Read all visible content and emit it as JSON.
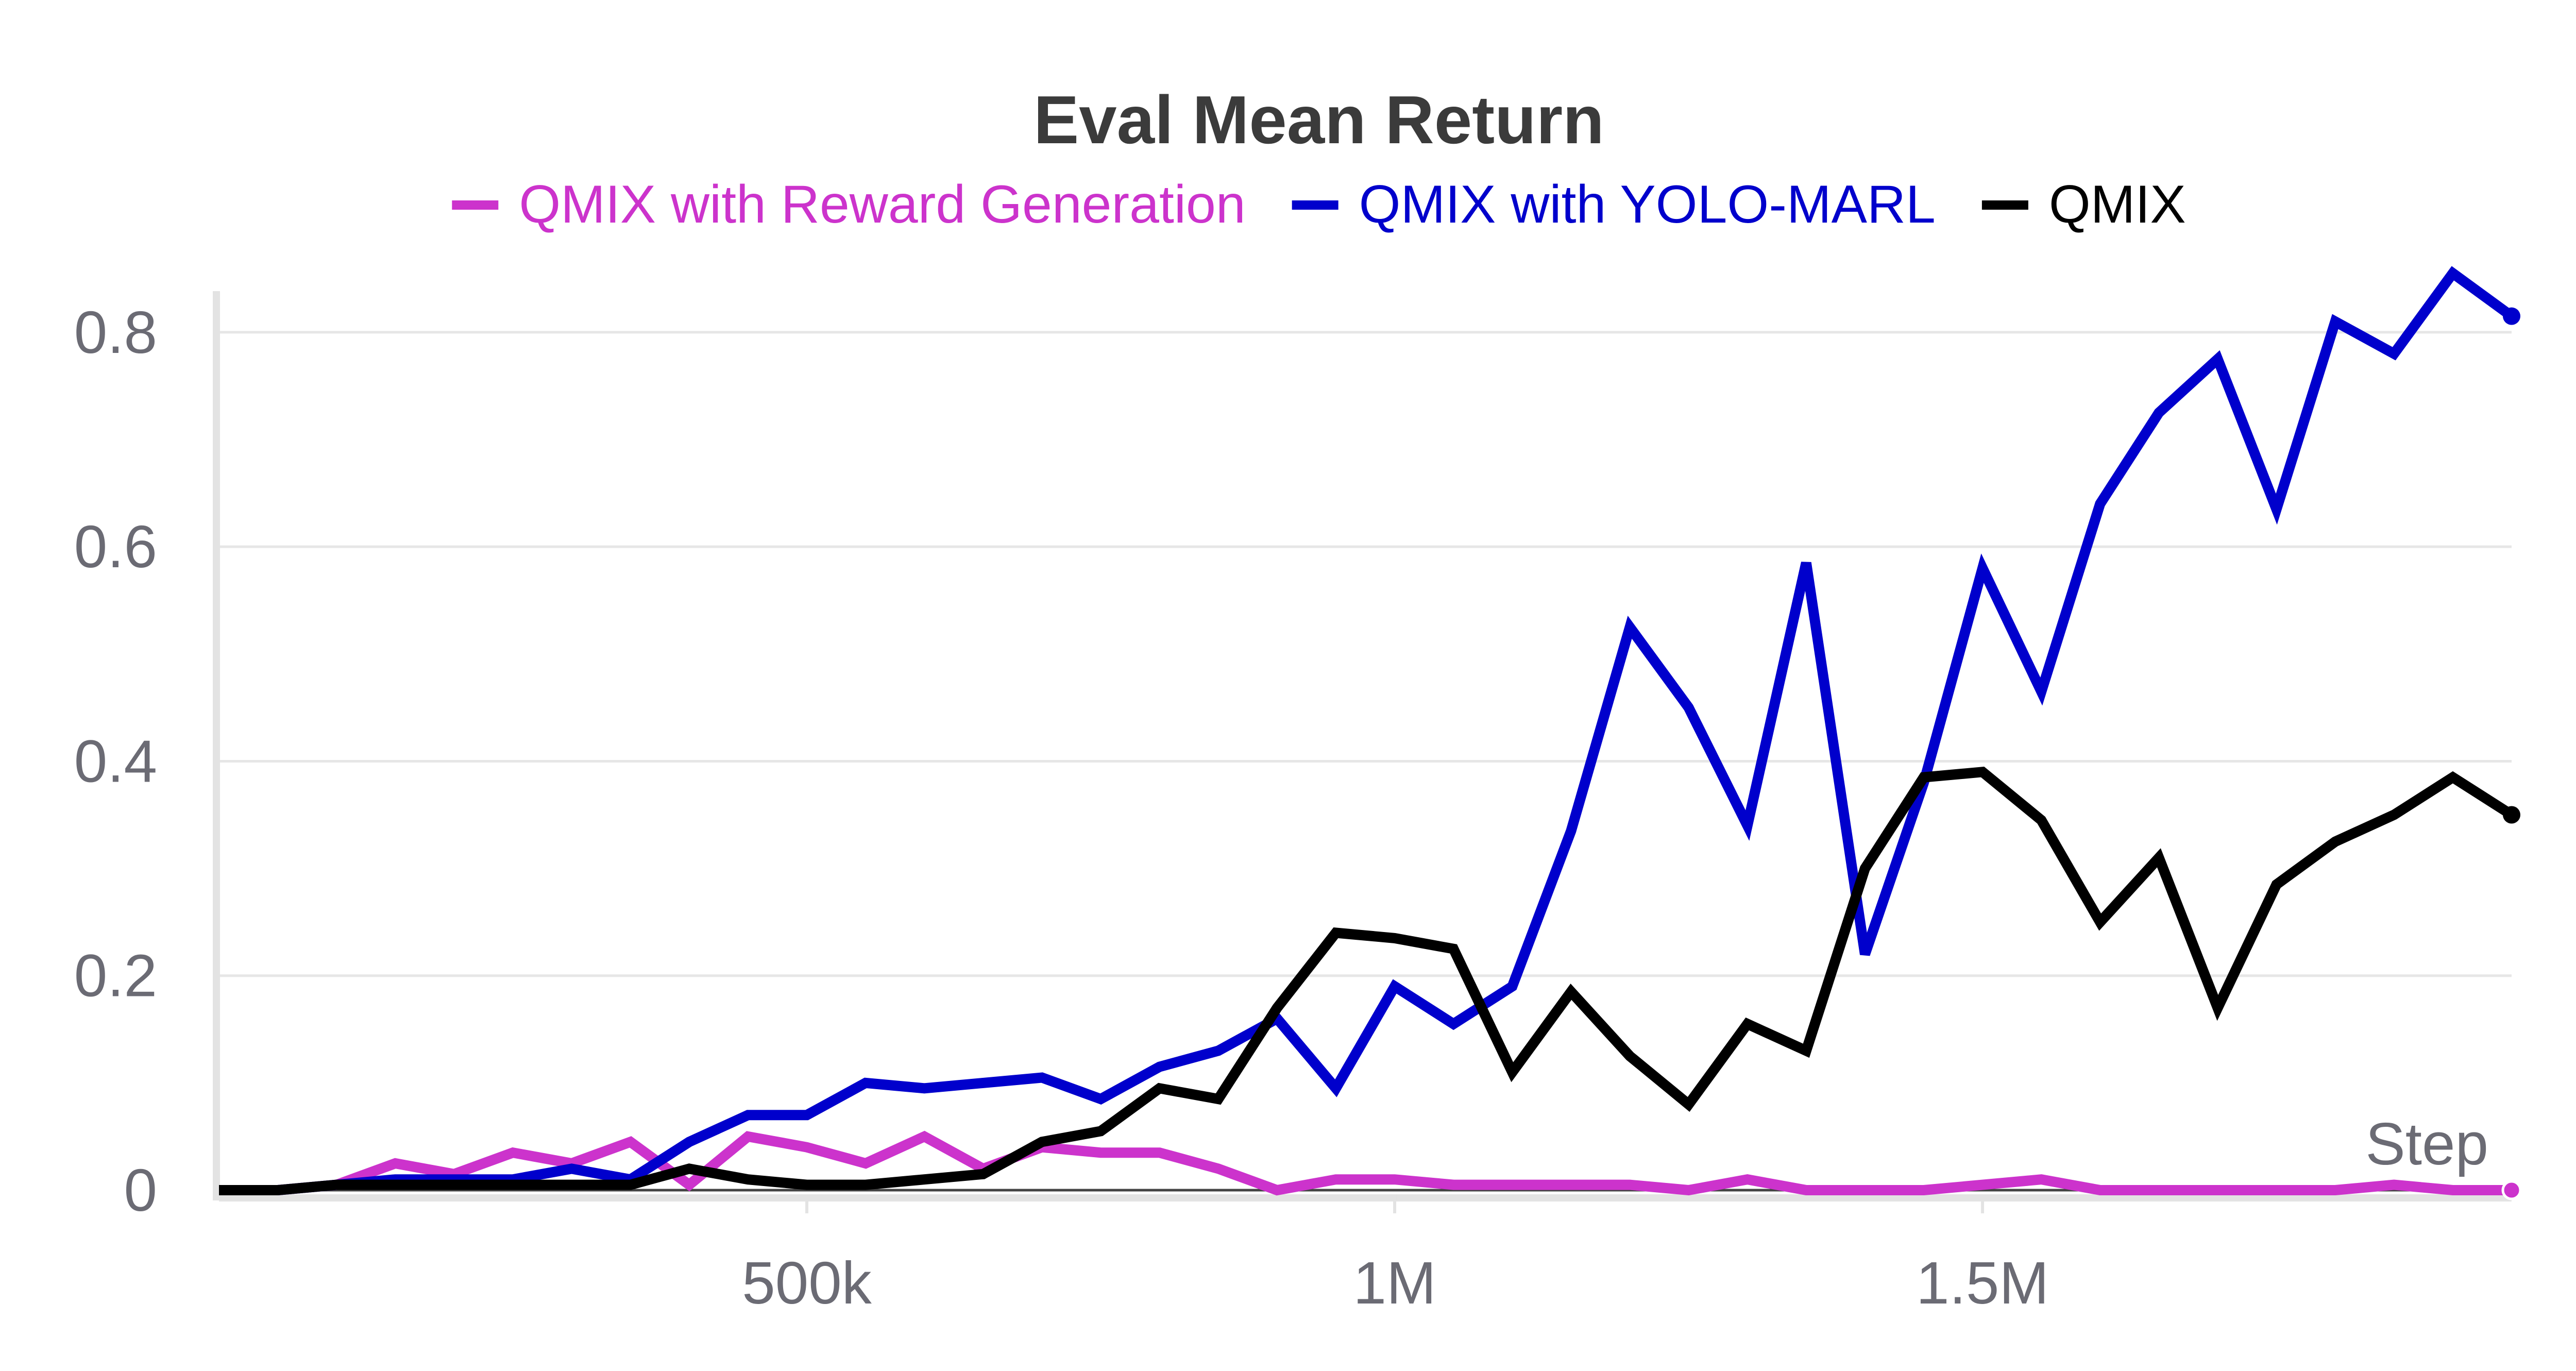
{
  "chart_data": {
    "type": "line",
    "title": "Eval Mean Return",
    "xlabel": "Step",
    "ylabel": "",
    "x_axis_label": "Step",
    "xlim": [
      0,
      1950000
    ],
    "ylim": [
      0,
      0.86
    ],
    "x_ticks": [
      {
        "value": 500000,
        "label": "500k"
      },
      {
        "value": 1000000,
        "label": "1M"
      },
      {
        "value": 1500000,
        "label": "1.5M"
      }
    ],
    "y_ticks": [
      {
        "value": 0,
        "label": "0"
      },
      {
        "value": 0.2,
        "label": "0.2"
      },
      {
        "value": 0.4,
        "label": "0.4"
      },
      {
        "value": 0.6,
        "label": "0.6"
      },
      {
        "value": 0.8,
        "label": "0.8"
      }
    ],
    "grid": true,
    "legend_position": "top-center",
    "x": [
      0,
      50000,
      100000,
      150000,
      200000,
      250000,
      300000,
      350000,
      400000,
      450000,
      500000,
      550000,
      600000,
      650000,
      700000,
      750000,
      800000,
      850000,
      900000,
      950000,
      1000000,
      1050000,
      1100000,
      1150000,
      1200000,
      1250000,
      1300000,
      1350000,
      1400000,
      1450000,
      1500000,
      1550000,
      1600000,
      1650000,
      1700000,
      1750000,
      1800000,
      1850000,
      1900000,
      1950000
    ],
    "series": [
      {
        "name": "QMIX with Reward Generation",
        "color": "#cc33cc",
        "values": [
          0,
          0,
          0.005,
          0.025,
          0.015,
          0.035,
          0.025,
          0.045,
          0.005,
          0.05,
          0.04,
          0.025,
          0.05,
          0.02,
          0.04,
          0.035,
          0.035,
          0.02,
          0,
          0.01,
          0.01,
          0.005,
          0.005,
          0.005,
          0.005,
          0,
          0.01,
          0,
          0,
          0,
          0.005,
          0.01,
          0,
          0,
          0,
          0,
          0,
          0.005,
          0,
          0
        ]
      },
      {
        "name": "QMIX with YOLO-MARL",
        "color": "#0000cc",
        "values": [
          0,
          0,
          0.005,
          0.01,
          0.01,
          0.01,
          0.02,
          0.01,
          0.045,
          0.07,
          0.07,
          0.1,
          0.095,
          0.1,
          0.105,
          0.085,
          0.115,
          0.13,
          0.16,
          0.095,
          0.19,
          0.155,
          0.19,
          0.335,
          0.525,
          0.45,
          0.34,
          0.585,
          0.22,
          0.38,
          0.58,
          0.465,
          0.64,
          0.725,
          0.775,
          0.635,
          0.81,
          0.78,
          0.855,
          0.815
        ]
      },
      {
        "name": "QMIX",
        "color": "#000000",
        "values": [
          0,
          0,
          0.005,
          0.005,
          0.005,
          0.005,
          0.005,
          0.005,
          0.02,
          0.01,
          0.005,
          0.005,
          0.01,
          0.015,
          0.045,
          0.055,
          0.095,
          0.085,
          0.17,
          0.24,
          0.235,
          0.225,
          0.11,
          0.185,
          0.125,
          0.08,
          0.155,
          0.13,
          0.3,
          0.385,
          0.39,
          0.345,
          0.25,
          0.31,
          0.17,
          0.285,
          0.325,
          0.35,
          0.385,
          0.35
        ]
      }
    ]
  }
}
